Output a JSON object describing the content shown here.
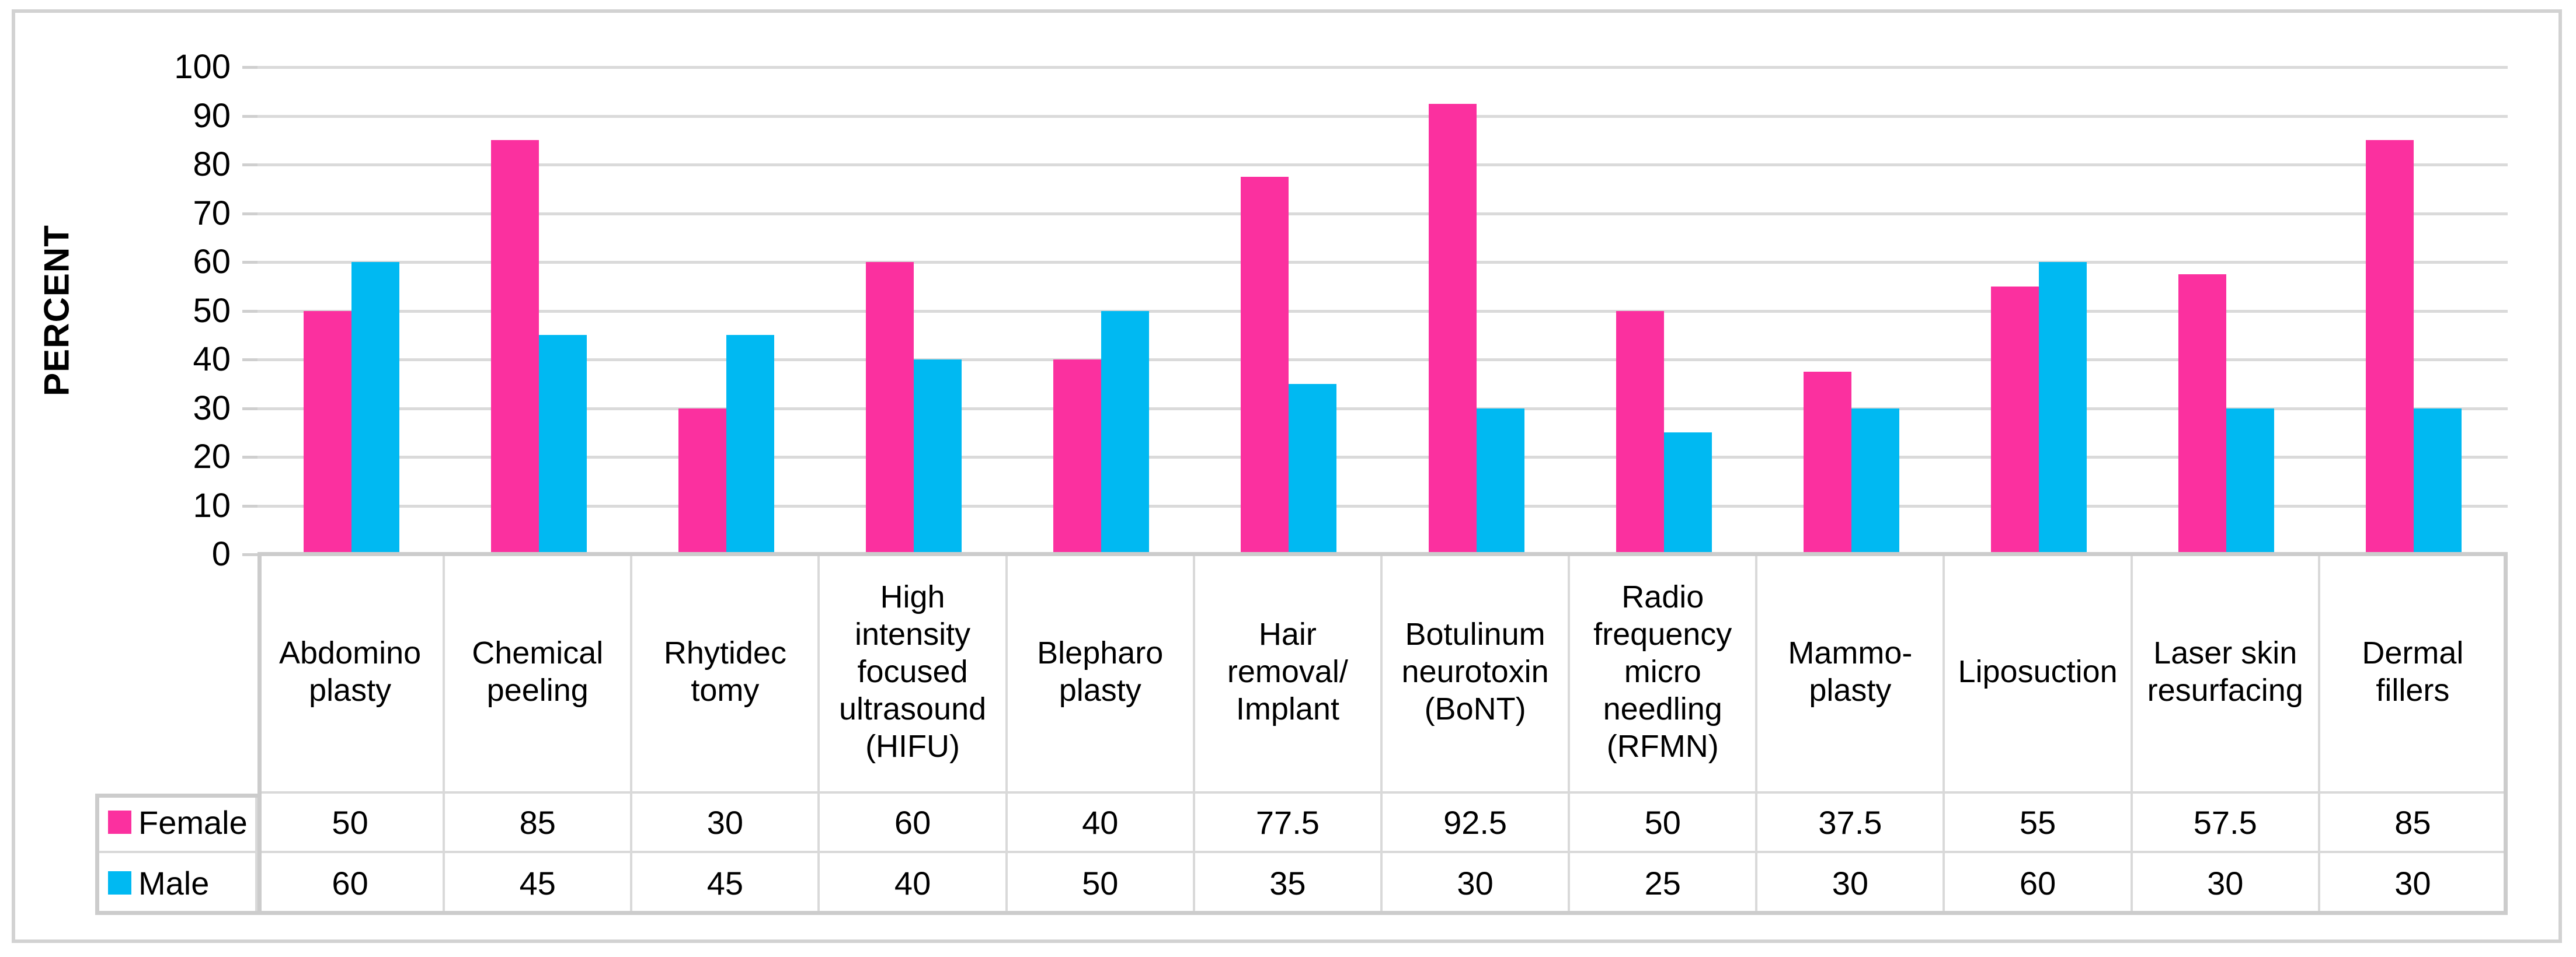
{
  "chart_data": {
    "type": "bar",
    "title": "",
    "xlabel": "",
    "ylabel": "PERCENT",
    "ylim": [
      0,
      100
    ],
    "yticks": [
      0,
      10,
      20,
      30,
      40,
      50,
      60,
      70,
      80,
      90,
      100
    ],
    "grid": true,
    "legend_position": "data-table-left",
    "categories": [
      "Abdomino\nplasty",
      "Chemical\npeeling",
      "Rhytidec\ntomy",
      "High\nintensity\nfocused\nultrasound\n(HIFU)",
      "Blepharo\nplasty",
      "Hair\nremoval/\nImplant",
      "Botulinum\nneurotoxin\n(BoNT)",
      "Radio\nfrequency\nmicro\nneedling\n(RFMN)",
      "Mammo-\nplasty",
      "Liposuction",
      "Laser skin\nresurfacing",
      "Dermal\nfillers"
    ],
    "series": [
      {
        "name": "Female",
        "color": "#fb309f",
        "values": [
          50,
          85,
          30,
          60,
          40,
          77.5,
          92.5,
          50,
          37.5,
          55,
          57.5,
          85
        ]
      },
      {
        "name": "Male",
        "color": "#00b9f2",
        "values": [
          60,
          45,
          45,
          40,
          50,
          35,
          30,
          25,
          30,
          60,
          30,
          30
        ]
      }
    ]
  },
  "colors": {
    "gridline": "#dadada",
    "table_border": "#d9d9d9",
    "table_outline": "#cccccc",
    "figure_border": "#d2d2d2",
    "text": "#000000"
  }
}
